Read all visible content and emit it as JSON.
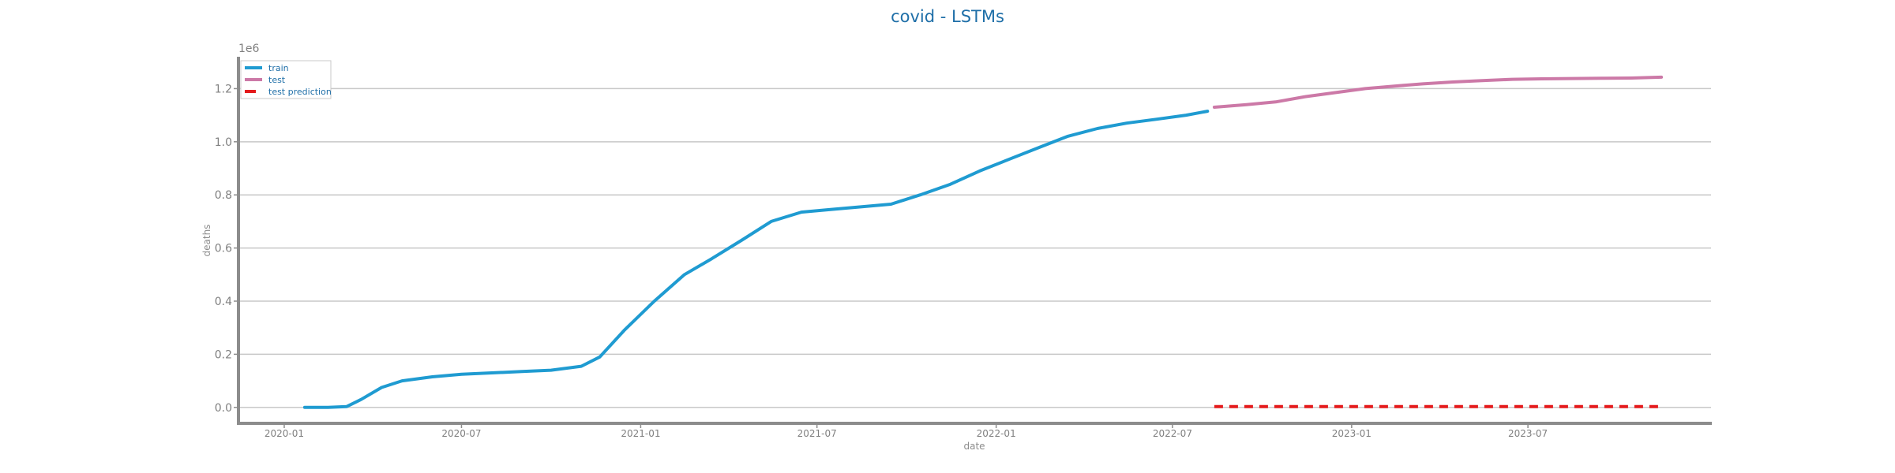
{
  "chart_data": {
    "type": "line",
    "title": "covid - LSTMs",
    "xlabel": "date",
    "ylabel": "deaths",
    "y_scale_label": "1e6",
    "x_range": [
      "2019-11-15",
      "2024-01-05"
    ],
    "ylim": [
      -0.06,
      1.32
    ],
    "x_ticks": [
      "2020-01",
      "2020-07",
      "2021-01",
      "2021-07",
      "2022-01",
      "2022-07",
      "2023-01",
      "2023-07"
    ],
    "y_ticks": [
      0.0,
      0.2,
      0.4,
      0.6,
      0.8,
      1.0,
      1.2
    ],
    "y_tick_labels": [
      "0.0",
      "0.2",
      "0.4",
      "0.6",
      "0.8",
      "1.0",
      "1.2"
    ],
    "grid": "horizontal",
    "legend_position": "top-left",
    "series": [
      {
        "name": "train",
        "color": "#1f9bd1",
        "style": "solid",
        "points": [
          [
            "2020-01-22",
            0.0
          ],
          [
            "2020-02-15",
            0.0
          ],
          [
            "2020-03-05",
            0.003
          ],
          [
            "2020-03-20",
            0.03
          ],
          [
            "2020-04-10",
            0.075
          ],
          [
            "2020-05-01",
            0.1
          ],
          [
            "2020-06-01",
            0.115
          ],
          [
            "2020-07-01",
            0.125
          ],
          [
            "2020-08-01",
            0.13
          ],
          [
            "2020-09-01",
            0.135
          ],
          [
            "2020-10-01",
            0.14
          ],
          [
            "2020-11-01",
            0.155
          ],
          [
            "2020-11-20",
            0.19
          ],
          [
            "2020-12-15",
            0.29
          ],
          [
            "2021-01-15",
            0.4
          ],
          [
            "2021-02-15",
            0.5
          ],
          [
            "2021-03-15",
            0.56
          ],
          [
            "2021-04-15",
            0.63
          ],
          [
            "2021-05-15",
            0.7
          ],
          [
            "2021-06-15",
            0.735
          ],
          [
            "2021-07-15",
            0.745
          ],
          [
            "2021-08-15",
            0.755
          ],
          [
            "2021-09-15",
            0.765
          ],
          [
            "2021-10-15",
            0.8
          ],
          [
            "2021-11-15",
            0.84
          ],
          [
            "2021-12-15",
            0.89
          ],
          [
            "2022-01-15",
            0.935
          ],
          [
            "2022-02-15",
            0.98
          ],
          [
            "2022-03-15",
            1.02
          ],
          [
            "2022-04-15",
            1.05
          ],
          [
            "2022-05-15",
            1.07
          ],
          [
            "2022-06-15",
            1.085
          ],
          [
            "2022-07-15",
            1.1
          ],
          [
            "2022-08-06",
            1.115
          ]
        ]
      },
      {
        "name": "test",
        "color": "#cc79a7",
        "style": "solid",
        "points": [
          [
            "2022-08-13",
            1.13
          ],
          [
            "2022-09-15",
            1.14
          ],
          [
            "2022-10-15",
            1.15
          ],
          [
            "2022-11-15",
            1.17
          ],
          [
            "2022-12-15",
            1.185
          ],
          [
            "2023-01-15",
            1.2
          ],
          [
            "2023-02-15",
            1.21
          ],
          [
            "2023-03-15",
            1.218
          ],
          [
            "2023-04-15",
            1.225
          ],
          [
            "2023-05-15",
            1.23
          ],
          [
            "2023-06-15",
            1.235
          ],
          [
            "2023-07-15",
            1.237
          ],
          [
            "2023-08-15",
            1.238
          ],
          [
            "2023-09-15",
            1.239
          ],
          [
            "2023-10-15",
            1.24
          ],
          [
            "2023-11-15",
            1.243
          ]
        ]
      },
      {
        "name": "test prediction",
        "color": "#e41a1c",
        "style": "dashed",
        "points": [
          [
            "2022-08-13",
            0.003
          ],
          [
            "2023-02-15",
            0.003
          ],
          [
            "2023-08-15",
            0.003
          ],
          [
            "2023-11-15",
            0.003
          ]
        ]
      }
    ]
  }
}
